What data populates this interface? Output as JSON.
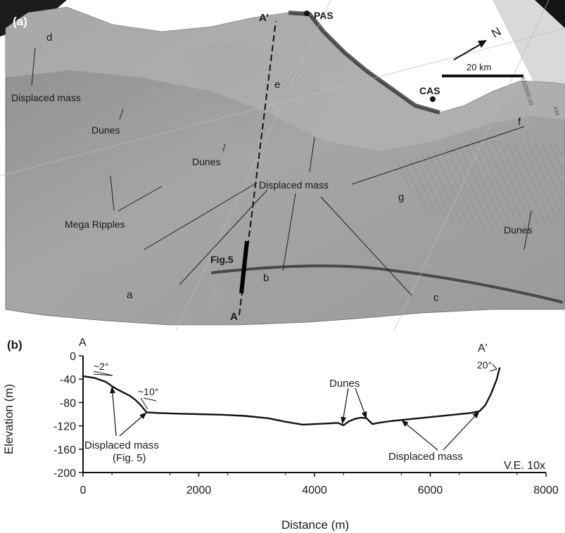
{
  "panel_a": {
    "panel_label": "(a)",
    "profile_start": "A",
    "profile_end": "A’",
    "stations": [
      {
        "name": "PAS"
      },
      {
        "name": "CAS"
      }
    ],
    "north_arrow_label": "N",
    "scale_bar_label": "20 km",
    "grid_label": "4320000.00",
    "grid_label_2": "434",
    "fig_ref": "Fig.5",
    "site_letters": [
      "a",
      "b",
      "c",
      "d",
      "e",
      "f",
      "g"
    ],
    "labels": {
      "displaced_mass_nw": "Displaced mass",
      "dunes_1": "Dunes",
      "dunes_2": "Dunes",
      "displaced_mass_center": "Displaced mass",
      "mega_ripples": "Mega Ripples",
      "dunes_se": "Dunes"
    }
  },
  "panel_b": {
    "panel_label": "(b)",
    "start_label": "A",
    "end_label": "A'",
    "ve_label": "V.E. 10x",
    "annotations": {
      "slope_2": "~2°",
      "slope_10": "~10°",
      "slope_20": "20°",
      "dunes": "Dunes",
      "displaced_mass_left": "Displaced mass",
      "displaced_mass_left_ref": "(Fig. 5)",
      "displaced_mass_right": "Displaced mass"
    }
  },
  "chart_data": {
    "type": "line",
    "title": "",
    "xlabel": "Distance (m)",
    "ylabel": "Elevation (m)",
    "xlim": [
      0,
      8000
    ],
    "ylim": [
      -200,
      0
    ],
    "xticks": [
      0,
      2000,
      4000,
      6000,
      8000
    ],
    "yticks": [
      0,
      -40,
      -80,
      -120,
      -160,
      -200
    ],
    "grid": false,
    "series": [
      {
        "x": [
          0,
          200,
          400,
          500,
          600,
          700,
          800,
          900,
          1000,
          1100,
          1300,
          1600,
          2000,
          2400,
          2800,
          3200,
          3500,
          3800,
          4000,
          4200,
          4400,
          4500,
          4600,
          4700,
          4800,
          4900,
          5000,
          5100,
          5300,
          5500,
          5800,
          6100,
          6400,
          6700,
          6850,
          6950,
          7050,
          7150,
          7200
        ],
        "y": [
          -35,
          -38,
          -45,
          -52,
          -58,
          -63,
          -68,
          -75,
          -85,
          -97,
          -98,
          -99,
          -100,
          -101,
          -103,
          -107,
          -113,
          -118,
          -117,
          -116,
          -115,
          -119,
          -112,
          -108,
          -106,
          -107,
          -117,
          -115,
          -112,
          -110,
          -107,
          -104,
          -101,
          -98,
          -95,
          -85,
          -65,
          -40,
          -20
        ]
      }
    ]
  }
}
